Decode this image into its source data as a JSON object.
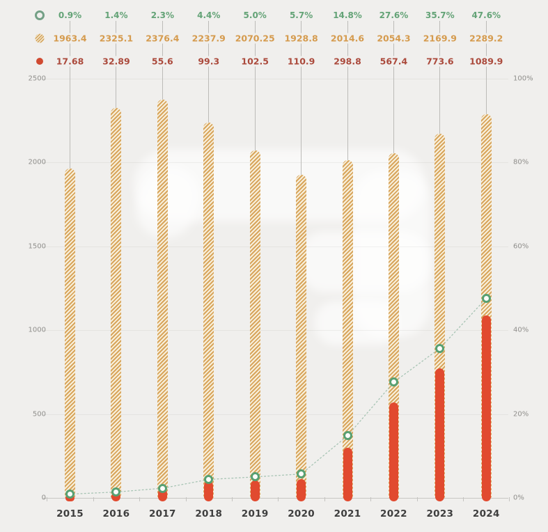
{
  "page": {
    "background": "#f0efed"
  },
  "chart_data": {
    "type": "bar",
    "subtype": "grouped-overlay-bars-with-percentage-line",
    "title": "",
    "categories": [
      "2015",
      "2016",
      "2017",
      "2018",
      "2019",
      "2020",
      "2021",
      "2022",
      "2023",
      "2024"
    ],
    "series": [
      {
        "key": "pct_line",
        "type": "line",
        "axis": "right",
        "marker": "open-circle",
        "marker_color": "#57a072",
        "line_color": "#a7c4b4",
        "line_style": "dotted",
        "text_color": "#64a377",
        "values": [
          0.9,
          1.4,
          2.3,
          4.4,
          5.0,
          5.7,
          14.8,
          27.6,
          35.7,
          47.6
        ],
        "labels": [
          "0.9%",
          "1.4%",
          "2.3%",
          "4.4%",
          "5.0%",
          "5.7%",
          "14.8%",
          "27.6%",
          "35.7%",
          "47.6%"
        ]
      },
      {
        "key": "hatched_bars",
        "type": "bar",
        "style": "hatched",
        "axis": "left",
        "color": "#d8a55c",
        "fill_bg": "#f8f0dc",
        "text_color": "#d59b4e",
        "values": [
          1963.4,
          2325.1,
          2376.4,
          2237.9,
          2070.25,
          1928.8,
          2014.6,
          2054.3,
          2169.9,
          2289.2
        ],
        "labels": [
          "1963.4",
          "2325.1",
          "2376.4",
          "2237.9",
          "2070.25",
          "1928.8",
          "2014.6",
          "2054.3",
          "2169.9",
          "2289.2"
        ]
      },
      {
        "key": "solid_bars",
        "type": "bar",
        "style": "solid",
        "axis": "left",
        "color": "#e14a2f",
        "text_color": "#ab4a3c",
        "values": [
          17.68,
          32.89,
          55.6,
          99.3,
          102.5,
          110.9,
          298.8,
          567.4,
          773.6,
          1089.9
        ],
        "labels": [
          "17.68",
          "32.89",
          "55.6",
          "99.3",
          "102.5",
          "110.9",
          "298.8",
          "567.4",
          "773.6",
          "1089.9"
        ]
      }
    ],
    "left_axis": {
      "min": 0,
      "max": 2500,
      "ticks": [
        "0",
        "500",
        "1000",
        "1500",
        "2000",
        "2500"
      ]
    },
    "right_axis": {
      "min": 0,
      "max": 100,
      "ticks": [
        "0%",
        "20%",
        "40%",
        "60%",
        "80%",
        "100%"
      ]
    },
    "grid": true,
    "legend_position": "top-table"
  }
}
